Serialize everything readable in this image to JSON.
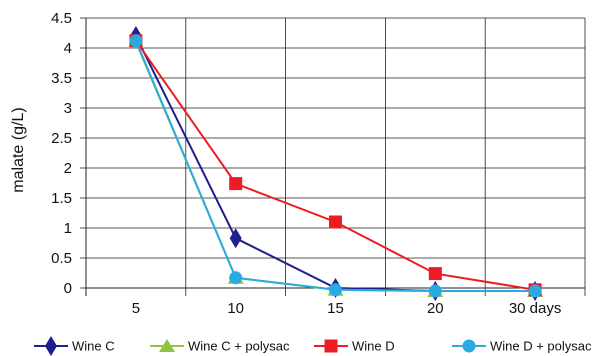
{
  "chart_data": {
    "type": "line",
    "title": "",
    "xlabel": "",
    "ylabel": "malate (g/L)",
    "categories": [
      "5",
      "10",
      "15",
      "20",
      "30 days"
    ],
    "ylim": [
      0,
      4.5
    ],
    "yticks": [
      "0",
      "0.5",
      "1",
      "1.5",
      "2",
      "2.5",
      "3",
      "3.5",
      "4",
      "4.5"
    ],
    "grid": true,
    "legend_position": "bottom",
    "series": [
      {
        "name": "Wine C",
        "values": [
          4.2,
          0.83,
          0.0,
          -0.05,
          -0.05
        ],
        "color": "#1f1f8f",
        "marker": "diamond"
      },
      {
        "name": "Wine C + polysac",
        "values": [
          4.1,
          0.17,
          -0.03,
          -0.05,
          -0.05
        ],
        "color": "#8ec63f",
        "marker": "triangle"
      },
      {
        "name": "Wine D",
        "values": [
          4.12,
          1.74,
          1.1,
          0.24,
          -0.03
        ],
        "color": "#ed1c24",
        "marker": "square"
      },
      {
        "name": "Wine D + polysac",
        "values": [
          4.12,
          0.17,
          -0.03,
          -0.05,
          -0.05
        ],
        "color": "#29abe2",
        "marker": "circle"
      }
    ]
  }
}
